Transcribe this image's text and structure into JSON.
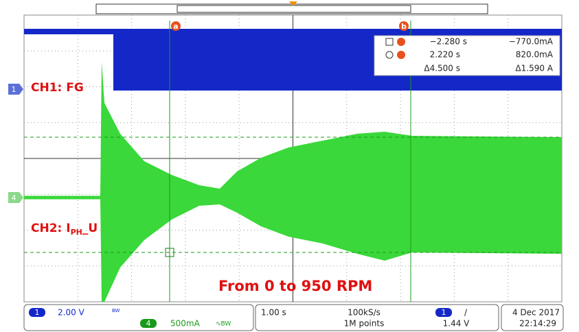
{
  "screen": {
    "cursors": {
      "a": "a",
      "b": "b"
    },
    "readout": {
      "a_time": "−2.280 s",
      "a_value": "−770.0mA",
      "b_time": "2.220 s",
      "b_value": "820.0mA",
      "delta_time": "Δ4.500 s",
      "delta_value": "Δ1.590 A"
    },
    "channel_markers": {
      "ch1": "1",
      "ch4": "4"
    },
    "labels": {
      "ch1": "CH1: FG",
      "ch2_main": "CH2: I",
      "ch2_sub": "PH",
      "ch2_tail": "_U",
      "caption": "From 0 to 950 RPM"
    }
  },
  "status_bar": {
    "ch1": {
      "number": "1",
      "scale": "2.00 V",
      "bw": "BW"
    },
    "ch4": {
      "number": "4",
      "scale": "500mA",
      "bw": "∿BW"
    },
    "timebase": "1.00 s",
    "sample_rate": "100kS/s",
    "record_length": "1M points",
    "trigger": {
      "channel": "1",
      "slope": "/",
      "level": "1.44 V"
    },
    "date": "4 Dec 2017",
    "time": "22:14:29"
  }
}
